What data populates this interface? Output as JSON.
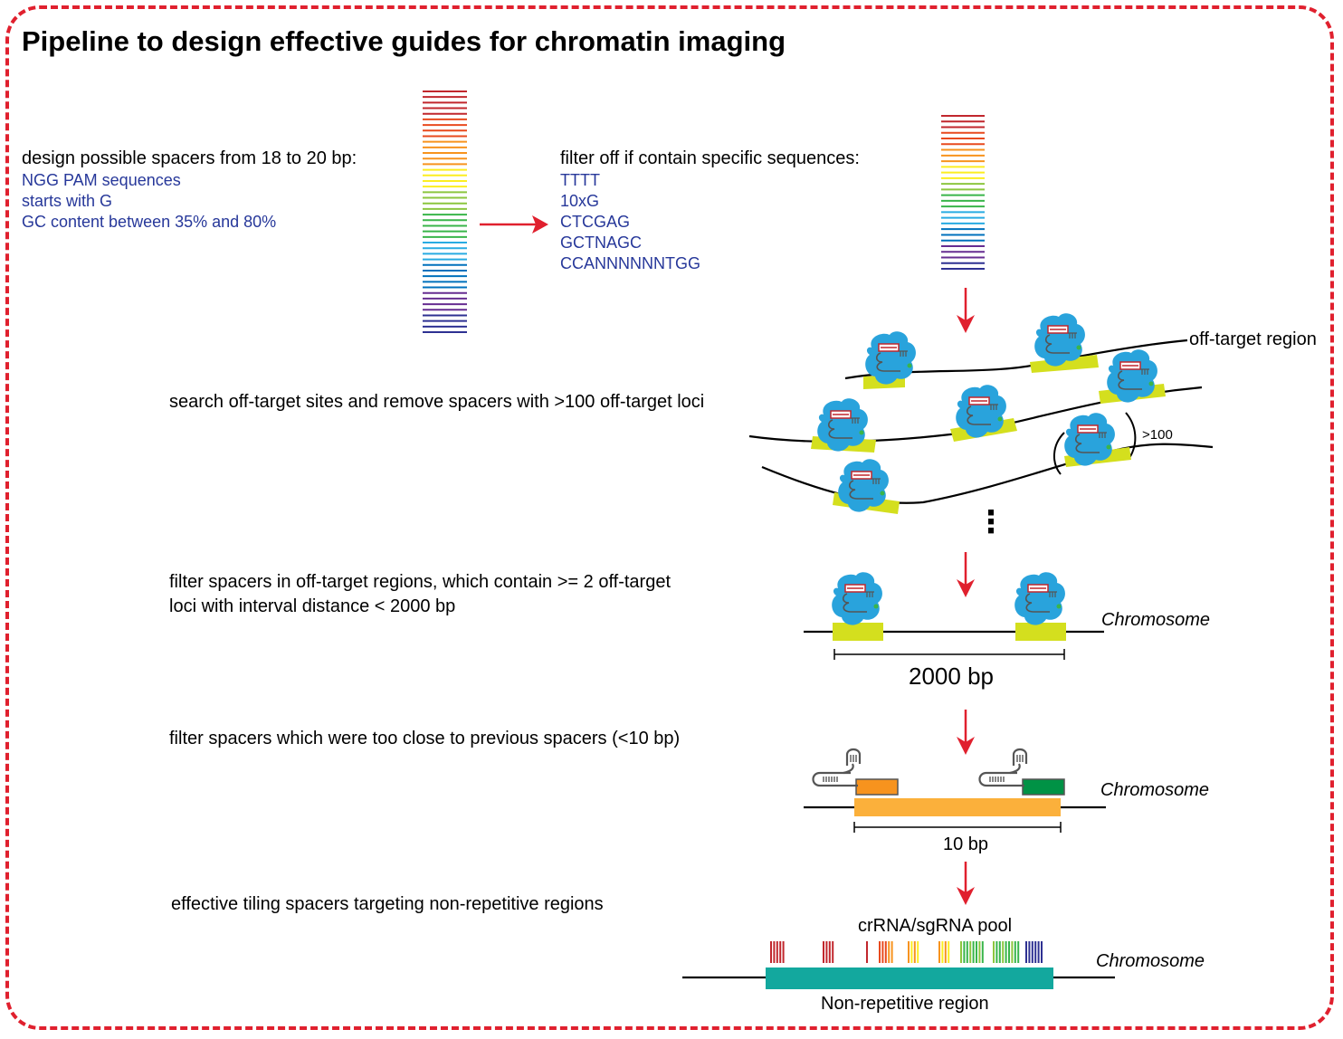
{
  "title": "Pipeline to design effective guides for chromatin imaging",
  "step1": {
    "heading": "design possible spacers from 18 to 20 bp:",
    "criteria": [
      "NGG PAM sequences",
      "starts with G",
      "GC content between 35% and 80%"
    ]
  },
  "step2": {
    "heading": "filter off if contain specific sequences:",
    "sequences": [
      "TTTT",
      "10xG",
      "CTCGAG",
      "GCTNAGC",
      "CCANNNNNNTGG"
    ]
  },
  "step3": {
    "text": "search off-target sites and remove spacers with >100 off-target loci",
    "region_label": "off-target region",
    "count_label": ">100",
    "ellipsis": "⋮"
  },
  "step4": {
    "line1": "filter spacers  in off-target regions, which contain >= 2 off-target",
    "line2": "loci with interval distance < 2000 bp",
    "chromosome_label": "Chromosome",
    "distance_label": "2000 bp"
  },
  "step5": {
    "text": "filter spacers which were too close to previous spacers (<10 bp)",
    "chromosome_label": "Chromosome",
    "distance_label": "10 bp"
  },
  "step6": {
    "text": "effective tiling spacers targeting non-repetitive regions",
    "pool_label": "crRNA/sgRNA pool",
    "chromosome_label": "Chromosome",
    "region_label": "Non-repetitive region"
  },
  "colors": {
    "border": "#e0202e",
    "arrow": "#e0202e",
    "criteria_text": "#27389a",
    "cas_protein": "#29a3dc",
    "binding_site": "#d4df1e",
    "spacer_orange": "#f7931e",
    "spacer_green": "#009245",
    "target_bar": "#fbb03b",
    "nonrepetitive_region": "#13a89e"
  },
  "spectrum": [
    "#c1272d",
    "#e84a1e",
    "#f7931e",
    "#fcee21",
    "#8cc63f",
    "#39b54a",
    "#29abe2",
    "#0071bc",
    "#662d91",
    "#2e3192"
  ]
}
